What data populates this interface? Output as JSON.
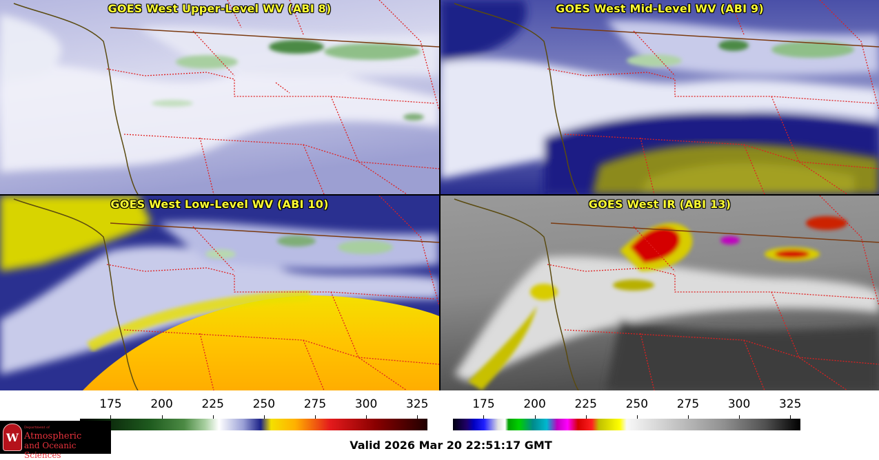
{
  "panels": [
    {
      "id": "p1",
      "title": "GOES West Upper-Level WV (ABI 8)",
      "scheme": "wv_upper"
    },
    {
      "id": "p2",
      "title": "GOES West Mid-Level WV (ABI 9)",
      "scheme": "wv_mid"
    },
    {
      "id": "p3",
      "title": "GOES West Low-Level WV (ABI 10)",
      "scheme": "wv_low"
    },
    {
      "id": "p4",
      "title": "GOES West IR (ABI 13)",
      "scheme": "ir"
    }
  ],
  "colorbars": [
    {
      "name": "wv",
      "ticks": [
        "175",
        "200",
        "225",
        "250",
        "275",
        "300",
        "325"
      ]
    },
    {
      "name": "ir",
      "ticks": [
        "175",
        "200",
        "225",
        "250",
        "275",
        "300",
        "325"
      ]
    }
  ],
  "colors": {
    "title_text": "#ffff33",
    "state_borders": "#e02020",
    "coastline": "#5a4a10",
    "intl_border": "#7a3a10"
  },
  "logo": {
    "seal_letter": "W",
    "dept": "Department of",
    "line1": "Atmospheric",
    "line2": "and Oceanic Sciences"
  },
  "valid_text": "Valid 2026 Mar 20 22:51:17 GMT"
}
